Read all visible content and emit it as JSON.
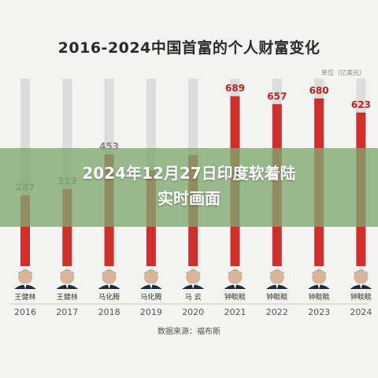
{
  "chart_data": {
    "type": "bar",
    "title": "2016-2024中国首富的个人财富变化",
    "unit_label": "单位（亿美元）",
    "categories": [
      "2016",
      "2017",
      "2018",
      "2019",
      "2020",
      "2021",
      "2022",
      "2023",
      "2024"
    ],
    "values": [
      287,
      313,
      453,
      388,
      450,
      689,
      657,
      680,
      623
    ],
    "value_labels": [
      "287",
      "313",
      "453",
      "",
      "",
      "689",
      "657",
      "680",
      "623"
    ],
    "person_names": [
      "王健林",
      "王健林",
      "马化腾",
      "马化腾",
      "马 云",
      "钟睒睒",
      "钟睒睒",
      "钟睒睒",
      "钟睒睒"
    ],
    "bar_colors": {
      "2016": "#cf2f2a",
      "2017": "#cf2f2a",
      "2018": "#cf2f2a",
      "2019": "#cf2f2a",
      "2020": "#cf2f2a",
      "2021": "#cf2f2a",
      "2022": "#cf2f2a",
      "2023": "#cf2f2a",
      "2024": "#cf2f2a"
    },
    "background_bar_color": "#dcdcdc",
    "ylim": [
      0,
      760
    ],
    "source": "数据来源：福布斯"
  },
  "overlay": {
    "line1": "2024年12月27日印度软着陆",
    "line2": "实时画面"
  }
}
